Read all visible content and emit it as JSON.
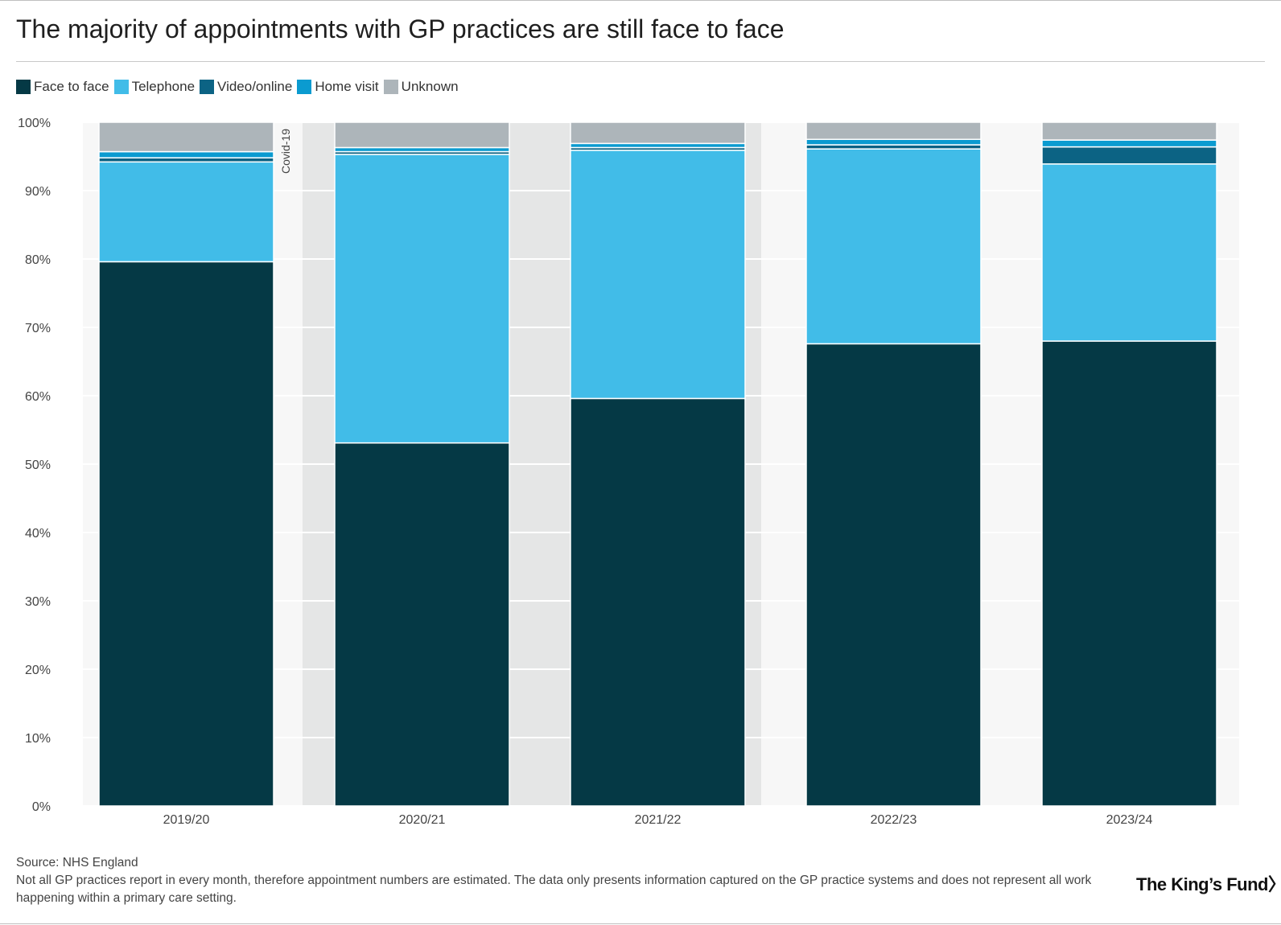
{
  "title": "The majority of appointments with GP practices are still face to face",
  "colors": {
    "face_to_face": "#053945",
    "telephone": "#41bce8",
    "video_online": "#0c6384",
    "home_visit": "#0b9bd0",
    "unknown": "#adb5ba",
    "plot_bg": "#f7f7f7",
    "covid_band": "#e5e6e6"
  },
  "footer": {
    "source": "Source: NHS England",
    "note": "Not all GP practices report in every month, therefore appointment numbers are estimated. The data only presents information captured on the GP practice systems and does not represent all work happening within a primary care setting."
  },
  "logo_text": "The King’s Fund〉",
  "chart_data": {
    "type": "bar",
    "stacked": true,
    "title": "The majority of appointments with GP practices are still face to face",
    "xlabel": "",
    "ylabel": "",
    "ylim": [
      0,
      100
    ],
    "y_ticks": [
      "0%",
      "10%",
      "20%",
      "30%",
      "40%",
      "50%",
      "60%",
      "70%",
      "80%",
      "90%",
      "100%"
    ],
    "categories": [
      "2019/20",
      "2020/21",
      "2021/22",
      "2022/23",
      "2023/24"
    ],
    "series": [
      {
        "name": "Face to face",
        "color_key": "face_to_face",
        "values": [
          79.6,
          53.1,
          59.6,
          67.6,
          68.0
        ]
      },
      {
        "name": "Telephone",
        "color_key": "telephone",
        "values": [
          14.6,
          42.2,
          36.3,
          28.5,
          25.9
        ]
      },
      {
        "name": "Video/online",
        "color_key": "video_online",
        "values": [
          0.6,
          0.4,
          0.4,
          0.6,
          2.5
        ]
      },
      {
        "name": "Home visit",
        "color_key": "home_visit",
        "values": [
          0.9,
          0.6,
          0.6,
          0.8,
          1.0
        ]
      },
      {
        "name": "Unknown",
        "color_key": "unknown",
        "values": [
          4.3,
          3.7,
          3.1,
          2.5,
          2.6
        ]
      }
    ],
    "annotations": [
      {
        "text": "Covid-19",
        "category_start": "2020/21",
        "category_end": "2021/22"
      }
    ],
    "legend": "top-left"
  }
}
